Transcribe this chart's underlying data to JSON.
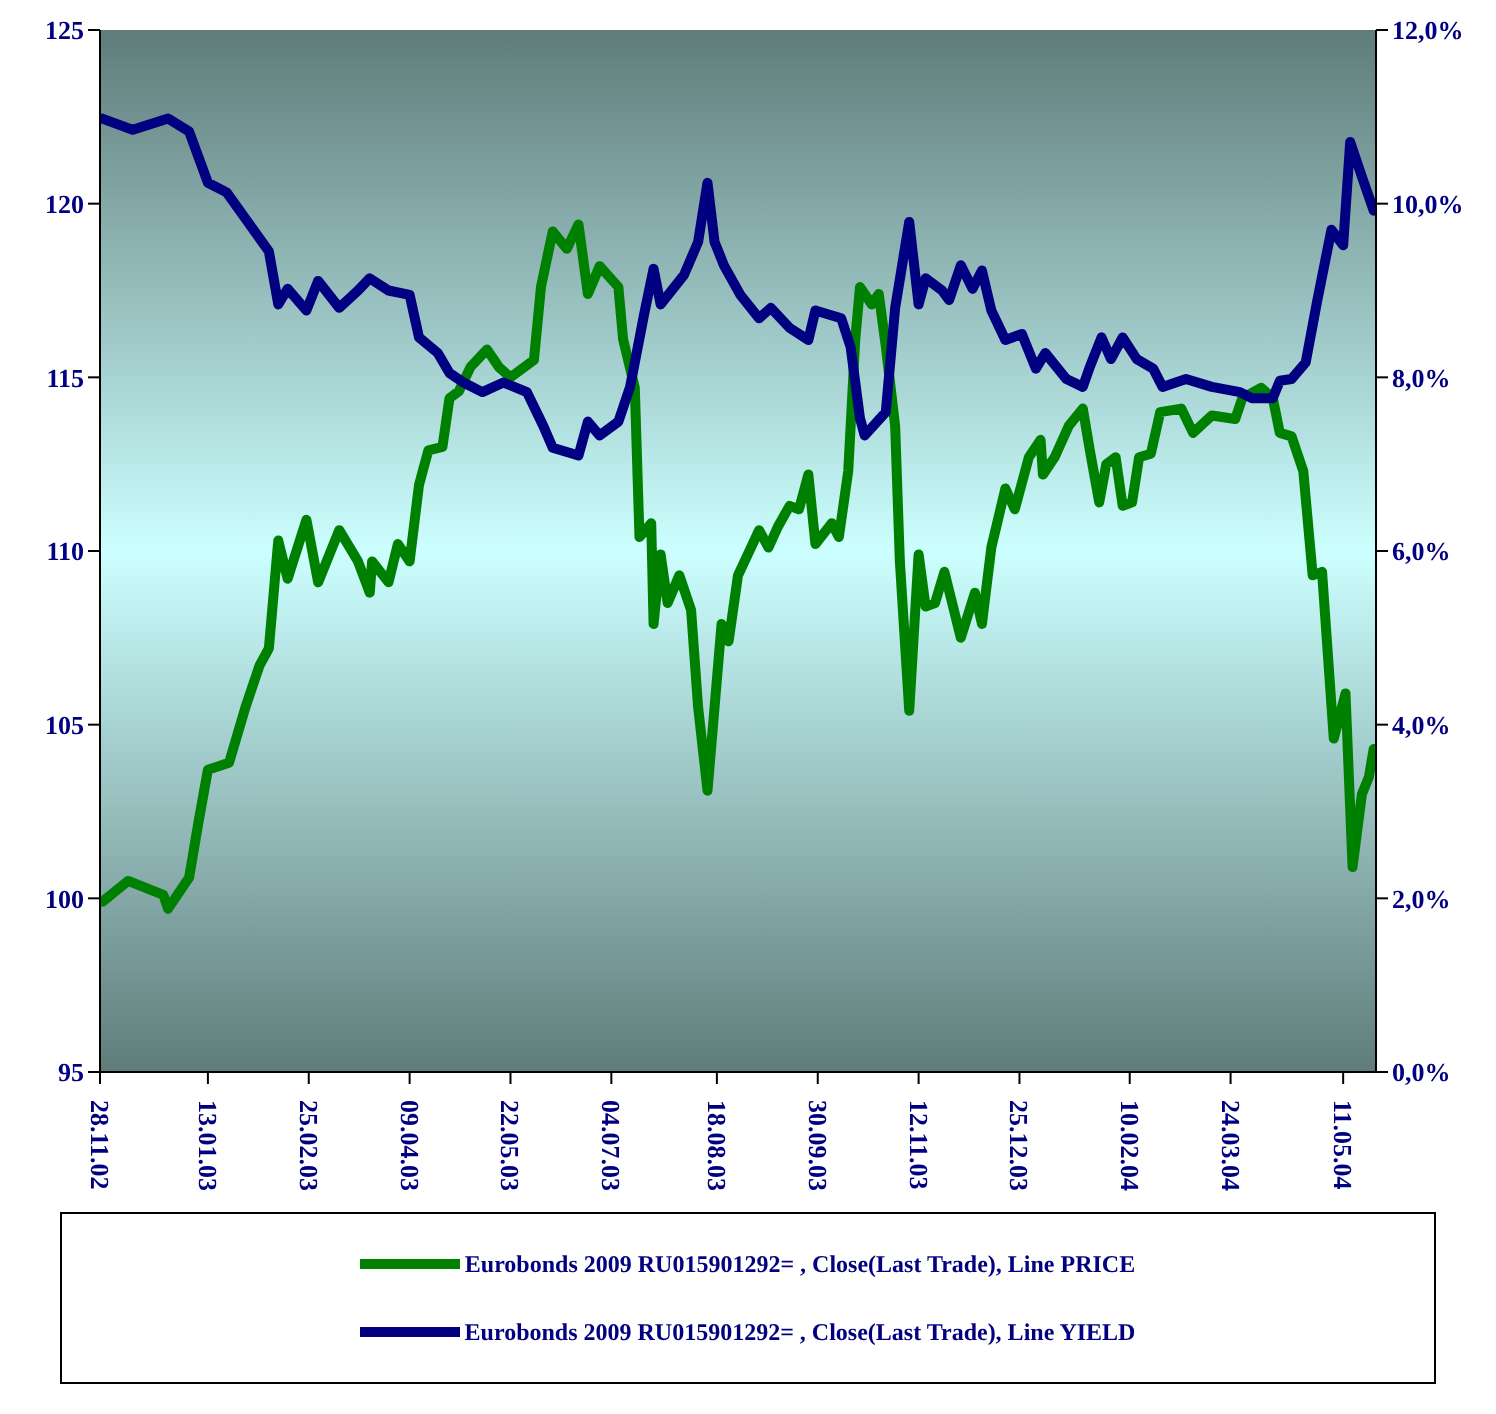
{
  "chart_data": {
    "type": "line",
    "xlim": [
      "2002-11-28",
      "2004-05-25"
    ],
    "xticks": [
      {
        "value": "2002-11-28",
        "label": "28.11.02"
      },
      {
        "value": "2003-01-13",
        "label": "13.01.03"
      },
      {
        "value": "2003-02-25",
        "label": "25.02.03"
      },
      {
        "value": "2003-04-09",
        "label": "09.04.03"
      },
      {
        "value": "2003-05-22",
        "label": "22.05.03"
      },
      {
        "value": "2003-07-04",
        "label": "04.07.03"
      },
      {
        "value": "2003-08-18",
        "label": "18.08.03"
      },
      {
        "value": "2003-09-30",
        "label": "30.09.03"
      },
      {
        "value": "2003-11-12",
        "label": "12.11.03"
      },
      {
        "value": "2003-12-25",
        "label": "25.12.03"
      },
      {
        "value": "2004-02-10",
        "label": "10.02.04"
      },
      {
        "value": "2004-03-24",
        "label": "24.03.04"
      },
      {
        "value": "2004-05-11",
        "label": "11.05.04"
      }
    ],
    "ylim": [
      95,
      125
    ],
    "yticks": [
      95,
      100,
      105,
      110,
      115,
      120,
      125
    ],
    "y2lim": [
      0,
      12
    ],
    "y2ticks": [
      {
        "value": 0,
        "label": "0,0%"
      },
      {
        "value": 2,
        "label": "2,0%"
      },
      {
        "value": 4,
        "label": "4,0%"
      },
      {
        "value": 6,
        "label": "6,0%"
      },
      {
        "value": 8,
        "label": "8,0%"
      },
      {
        "value": 10,
        "label": "10,0%"
      },
      {
        "value": 12,
        "label": "12,0%"
      }
    ],
    "grid": false,
    "legend": "bottom",
    "marker": "none",
    "line_style": "solid",
    "series": [
      {
        "name": "Eurobonds 2009 RU015901292= , Close(Last Trade), Line PRICE",
        "color": "#008000",
        "x": [
          "2002-11-29",
          "2002-12-10",
          "2002-12-25",
          "2002-12-27",
          "2003-01-05",
          "2003-01-09",
          "2003-01-13",
          "2003-01-22",
          "2003-01-29",
          "2003-02-04",
          "2003-02-08",
          "2003-02-12",
          "2003-02-16",
          "2003-02-24",
          "2003-03-01",
          "2003-03-10",
          "2003-03-18",
          "2003-03-23",
          "2003-03-24",
          "2003-03-31",
          "2003-04-04",
          "2003-04-09",
          "2003-04-13",
          "2003-04-17",
          "2003-04-23",
          "2003-04-26",
          "2003-04-30",
          "2003-05-05",
          "2003-05-12",
          "2003-05-17",
          "2003-05-22",
          "2003-06-01",
          "2003-06-04",
          "2003-06-09",
          "2003-06-15",
          "2003-06-20",
          "2003-06-24",
          "2003-06-29",
          "2003-07-07",
          "2003-07-09",
          "2003-07-14",
          "2003-07-16",
          "2003-07-21",
          "2003-07-22",
          "2003-07-25",
          "2003-07-28",
          "2003-08-02",
          "2003-08-07",
          "2003-08-10",
          "2003-08-14",
          "2003-08-17",
          "2003-08-20",
          "2003-08-23",
          "2003-08-27",
          "2003-09-05",
          "2003-09-09",
          "2003-09-13",
          "2003-09-18",
          "2003-09-22",
          "2003-09-26",
          "2003-09-29",
          "2003-10-06",
          "2003-10-09",
          "2003-10-13",
          "2003-10-16",
          "2003-10-18",
          "2003-10-23",
          "2003-10-26",
          "2003-10-29",
          "2003-11-02",
          "2003-11-04",
          "2003-11-08",
          "2003-11-12",
          "2003-11-15",
          "2003-11-19",
          "2003-11-23",
          "2003-11-30",
          "2003-12-06",
          "2003-12-09",
          "2003-12-13",
          "2003-12-19",
          "2003-12-23",
          "2003-12-29",
          "2004-01-03",
          "2004-01-04",
          "2004-01-09",
          "2004-01-15",
          "2004-01-21",
          "2004-01-24",
          "2004-01-28",
          "2004-01-31",
          "2004-02-04",
          "2004-02-07",
          "2004-02-11",
          "2004-02-14",
          "2004-02-19",
          "2004-02-23",
          "2004-03-03",
          "2004-03-08",
          "2004-03-16",
          "2004-03-26",
          "2004-03-29",
          "2004-04-06",
          "2004-04-11",
          "2004-04-14",
          "2004-04-19",
          "2004-04-24",
          "2004-04-28",
          "2004-05-02",
          "2004-05-07",
          "2004-05-12",
          "2004-05-15",
          "2004-05-19",
          "2004-05-22",
          "2004-05-24"
        ],
        "values": [
          99.9,
          100.5,
          100.1,
          99.7,
          100.6,
          102.2,
          103.7,
          103.9,
          105.5,
          106.7,
          107.2,
          110.3,
          109.2,
          110.9,
          109.1,
          110.6,
          109.7,
          108.8,
          109.7,
          109.1,
          110.2,
          109.7,
          111.9,
          112.9,
          113.0,
          114.4,
          114.6,
          115.3,
          115.8,
          115.3,
          115.0,
          115.5,
          117.6,
          119.2,
          118.7,
          119.4,
          117.4,
          118.2,
          117.6,
          116.1,
          114.7,
          110.4,
          110.8,
          107.9,
          109.9,
          108.5,
          109.3,
          108.3,
          105.5,
          103.1,
          105.5,
          107.9,
          107.4,
          109.3,
          110.6,
          110.1,
          110.7,
          111.3,
          111.2,
          112.2,
          110.2,
          110.8,
          110.4,
          112.3,
          116.1,
          117.6,
          117.1,
          117.4,
          115.9,
          113.6,
          109.7,
          105.4,
          109.9,
          108.4,
          108.5,
          109.4,
          107.5,
          108.8,
          107.9,
          110.1,
          111.8,
          111.2,
          112.7,
          113.2,
          112.2,
          112.7,
          113.6,
          114.1,
          112.9,
          111.4,
          112.5,
          112.7,
          111.3,
          111.4,
          112.7,
          112.8,
          114.0,
          114.1,
          113.4,
          113.9,
          113.8,
          114.4,
          114.7,
          114.4,
          113.4,
          113.3,
          112.3,
          109.3,
          109.4,
          104.6,
          105.9,
          100.9,
          103.0,
          103.5,
          104.3
        ]
      },
      {
        "name": "Eurobonds 2009 RU015901292= , Close(Last Trade), Line YIELD",
        "color": "#000080",
        "axis": "y2",
        "x": [
          "2002-11-29",
          "2002-12-12",
          "2002-12-27",
          "2003-01-05",
          "2003-01-13",
          "2003-01-21",
          "2003-01-30",
          "2003-02-08",
          "2003-02-12",
          "2003-02-16",
          "2003-02-24",
          "2003-03-01",
          "2003-03-10",
          "2003-03-18",
          "2003-03-23",
          "2003-03-31",
          "2003-04-09",
          "2003-04-13",
          "2003-04-21",
          "2003-04-26",
          "2003-05-02",
          "2003-05-10",
          "2003-05-19",
          "2003-05-29",
          "2003-06-05",
          "2003-06-09",
          "2003-06-20",
          "2003-06-24",
          "2003-06-29",
          "2003-07-07",
          "2003-07-12",
          "2003-07-18",
          "2003-07-22",
          "2003-07-25",
          "2003-08-04",
          "2003-08-10",
          "2003-08-14",
          "2003-08-17",
          "2003-08-21",
          "2003-08-28",
          "2003-09-05",
          "2003-09-10",
          "2003-09-18",
          "2003-09-26",
          "2003-09-29",
          "2003-10-10",
          "2003-10-14",
          "2003-10-18",
          "2003-10-20",
          "2003-10-29",
          "2003-11-02",
          "2003-11-08",
          "2003-11-12",
          "2003-11-15",
          "2003-11-22",
          "2003-11-25",
          "2003-11-30",
          "2003-12-05",
          "2003-12-09",
          "2003-12-13",
          "2003-12-19",
          "2003-12-26",
          "2004-01-01",
          "2004-01-05",
          "2004-01-14",
          "2004-01-21",
          "2004-01-24",
          "2004-01-29",
          "2004-02-02",
          "2004-02-07",
          "2004-02-13",
          "2004-02-20",
          "2004-02-24",
          "2004-03-05",
          "2004-03-16",
          "2004-03-28",
          "2004-04-02",
          "2004-04-11",
          "2004-04-14",
          "2004-04-19",
          "2004-04-25",
          "2004-04-30",
          "2004-05-06",
          "2004-05-11",
          "2004-05-14",
          "2004-05-19",
          "2004-05-24"
        ],
        "values": [
          10.98,
          10.85,
          10.98,
          10.83,
          10.24,
          10.13,
          9.79,
          9.45,
          8.84,
          9.02,
          8.77,
          9.11,
          8.8,
          9.0,
          9.14,
          9.0,
          8.95,
          8.46,
          8.28,
          8.05,
          7.94,
          7.83,
          7.94,
          7.83,
          7.44,
          7.19,
          7.1,
          7.49,
          7.33,
          7.49,
          7.89,
          8.73,
          9.25,
          8.84,
          9.18,
          9.56,
          10.24,
          9.56,
          9.29,
          8.95,
          8.68,
          8.8,
          8.57,
          8.43,
          8.77,
          8.68,
          8.35,
          7.53,
          7.33,
          7.6,
          8.8,
          9.79,
          8.84,
          9.14,
          9.0,
          8.89,
          9.29,
          9.02,
          9.23,
          8.77,
          8.43,
          8.5,
          8.1,
          8.28,
          7.98,
          7.89,
          8.12,
          8.46,
          8.21,
          8.46,
          8.21,
          8.1,
          7.89,
          7.98,
          7.89,
          7.83,
          7.76,
          7.76,
          7.96,
          7.98,
          8.17,
          8.89,
          9.7,
          9.52,
          10.71,
          10.31,
          9.92
        ]
      }
    ]
  }
}
